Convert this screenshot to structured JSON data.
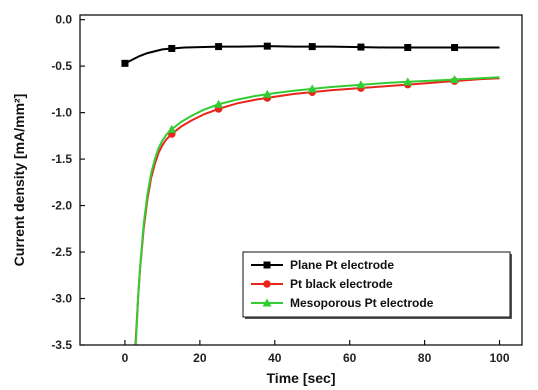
{
  "chart_data": {
    "type": "line",
    "xlabel": "Time [sec]",
    "ylabel": "Current density [mA/mm²]",
    "xlim": [
      -12,
      106
    ],
    "ylim": [
      -3.5,
      0.05
    ],
    "x_ticks": [
      0,
      20,
      40,
      60,
      80,
      100
    ],
    "y_ticks": [
      0.0,
      -0.5,
      -1.0,
      -1.5,
      -2.0,
      -2.5,
      -3.0,
      -3.5
    ],
    "x_tick_labels": [
      "0",
      "20",
      "40",
      "60",
      "80",
      "100"
    ],
    "y_tick_labels": [
      "0.0",
      "-0.5",
      "-1.0",
      "-1.5",
      "-2.0",
      "-2.5",
      "-3.0",
      "-3.5"
    ],
    "grid": false,
    "legend_position": "bottom-right",
    "series": [
      {
        "name": "Plane Pt electrode",
        "color": "#000000",
        "marker": "square",
        "x": [
          0,
          2,
          4,
          6,
          8,
          10,
          12.5,
          16,
          20,
          25,
          30,
          38,
          45,
          50,
          55,
          63,
          70,
          75.5,
          80,
          88,
          95,
          100
        ],
        "y": [
          -0.47,
          -0.43,
          -0.39,
          -0.36,
          -0.34,
          -0.32,
          -0.31,
          -0.3,
          -0.295,
          -0.29,
          -0.29,
          -0.285,
          -0.29,
          -0.29,
          -0.29,
          -0.295,
          -0.3,
          -0.3,
          -0.3,
          -0.3,
          -0.3,
          -0.3
        ],
        "marker_x": [
          0,
          12.5,
          25,
          38,
          50,
          63,
          75.5,
          88
        ]
      },
      {
        "name": "Pt black electrode",
        "color": "#e8261b",
        "marker": "circle",
        "x": [
          2.8,
          3.5,
          4,
          5,
          6,
          7,
          8,
          9,
          10,
          11,
          12.5,
          15,
          18,
          21,
          25,
          30,
          35,
          40,
          45,
          50,
          55,
          60,
          65,
          70,
          75,
          80,
          85,
          90,
          95,
          100
        ],
        "y": [
          -3.5,
          -3.0,
          -2.7,
          -2.25,
          -1.93,
          -1.7,
          -1.55,
          -1.43,
          -1.35,
          -1.29,
          -1.23,
          -1.15,
          -1.08,
          -1.02,
          -0.96,
          -0.9,
          -0.86,
          -0.83,
          -0.8,
          -0.78,
          -0.76,
          -0.745,
          -0.73,
          -0.715,
          -0.7,
          -0.685,
          -0.67,
          -0.655,
          -0.64,
          -0.63
        ],
        "marker_x": [
          12.5,
          25,
          38,
          50,
          63,
          75.5,
          88
        ]
      },
      {
        "name": "Mesoporous Pt electrode",
        "color": "#33cc33",
        "marker": "triangle",
        "x": [
          2.9,
          3.5,
          4,
          5,
          6,
          7,
          8,
          9,
          10,
          11,
          12.5,
          15,
          18,
          21,
          25,
          30,
          35,
          40,
          45,
          50,
          55,
          60,
          65,
          70,
          75,
          80,
          85,
          90,
          95,
          100
        ],
        "y": [
          -3.5,
          -3.0,
          -2.68,
          -2.2,
          -1.88,
          -1.65,
          -1.5,
          -1.38,
          -1.3,
          -1.24,
          -1.18,
          -1.1,
          -1.03,
          -0.97,
          -0.91,
          -0.86,
          -0.82,
          -0.79,
          -0.765,
          -0.745,
          -0.725,
          -0.71,
          -0.695,
          -0.68,
          -0.67,
          -0.66,
          -0.65,
          -0.64,
          -0.63,
          -0.62
        ],
        "marker_x": [
          12.5,
          25,
          38,
          50,
          63,
          75.5,
          88
        ]
      }
    ]
  }
}
